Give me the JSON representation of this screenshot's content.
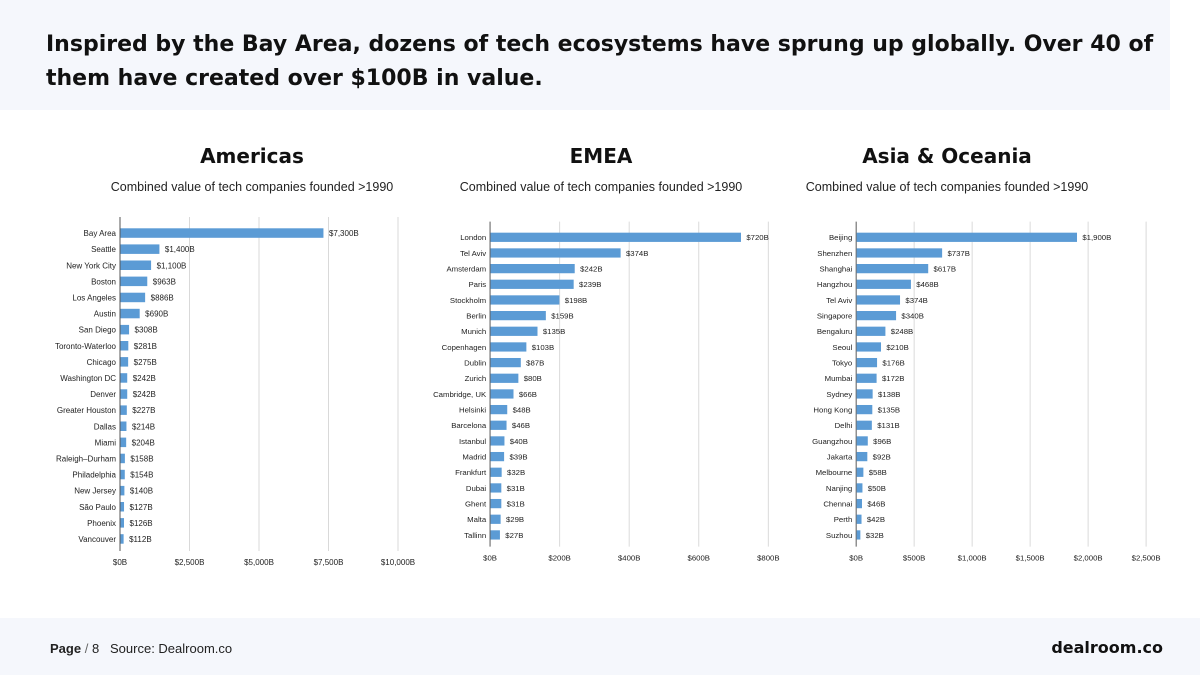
{
  "headline": "Inspired by the Bay Area, dozens of tech ecosystems have sprung up globally. Over 40 of them have created over $100B in value.",
  "footer": {
    "page_label": "Page",
    "page_sep": "/",
    "page_number": "8",
    "source": "Source: Dealroom.co",
    "brand": "dealroom.co"
  },
  "colors": {
    "bar": "#5b9bd5",
    "grid": "#d9d9d9",
    "axis": "#555555"
  },
  "chart_data": [
    {
      "type": "bar",
      "orientation": "horizontal",
      "title": "Americas",
      "subtitle": "Combined value of tech companies founded >1990",
      "xlim": [
        0,
        10000
      ],
      "ticks": [
        0,
        2500,
        5000,
        7500,
        10000
      ],
      "tick_labels": [
        "$0B",
        "$2,500B",
        "$5,000B",
        "$7,500B",
        "$10,000B"
      ],
      "categories": [
        "Bay Area",
        "Seattle",
        "New York City",
        "Boston",
        "Los Angeles",
        "Austin",
        "San Diego",
        "Toronto-Waterloo",
        "Chicago",
        "Washington DC",
        "Denver",
        "Greater Houston",
        "Dallas",
        "Miami",
        "Raleigh–Durham",
        "Philadelphia",
        "New Jersey",
        "São Paulo",
        "Phoenix",
        "Vancouver"
      ],
      "values": [
        7300,
        1400,
        1100,
        963,
        886,
        690,
        308,
        281,
        275,
        242,
        242,
        227,
        214,
        204,
        158,
        154,
        140,
        127,
        126,
        112
      ],
      "labels": [
        "$7,300B",
        "$1,400B",
        "$1,100B",
        "$963B",
        "$886B",
        "$690B",
        "$308B",
        "$281B",
        "$275B",
        "$242B",
        "$242B",
        "$227B",
        "$214B",
        "$204B",
        "$158B",
        "$154B",
        "$140B",
        "$127B",
        "$126B",
        "$112B"
      ]
    },
    {
      "type": "bar",
      "orientation": "horizontal",
      "title": "EMEA",
      "subtitle": "Combined value of tech companies founded >1990",
      "xlim": [
        0,
        800
      ],
      "ticks": [
        0,
        200,
        400,
        600,
        800
      ],
      "tick_labels": [
        "$0B",
        "$200B",
        "$400B",
        "$600B",
        "$800B"
      ],
      "categories": [
        "London",
        "Tel Aviv",
        "Amsterdam",
        "Paris",
        "Stockholm",
        "Berlin",
        "Munich",
        "Copenhagen",
        "Dublin",
        "Zurich",
        "Cambridge, UK",
        "Helsinki",
        "Barcelona",
        "Istanbul",
        "Madrid",
        "Frankfurt",
        "Dubai",
        "Ghent",
        "Malta",
        "Tallinn"
      ],
      "values": [
        720,
        374,
        242,
        239,
        198,
        159,
        135,
        103,
        87,
        80,
        66,
        48,
        46,
        40,
        39,
        32,
        31,
        31,
        29,
        27
      ],
      "labels": [
        "$720B",
        "$374B",
        "$242B",
        "$239B",
        "$198B",
        "$159B",
        "$135B",
        "$103B",
        "$87B",
        "$80B",
        "$66B",
        "$48B",
        "$46B",
        "$40B",
        "$39B",
        "$32B",
        "$31B",
        "$31B",
        "$29B",
        "$27B"
      ]
    },
    {
      "type": "bar",
      "orientation": "horizontal",
      "title": "Asia & Oceania",
      "subtitle": "Combined value of tech companies founded >1990",
      "xlim": [
        0,
        2500
      ],
      "ticks": [
        0,
        500,
        1000,
        1500,
        2000,
        2500
      ],
      "tick_labels": [
        "$0B",
        "$500B",
        "$1,000B",
        "$1,500B",
        "$2,000B",
        "$2,500B"
      ],
      "categories": [
        "Beijing",
        "Shenzhen",
        "Shanghai",
        "Hangzhou",
        "Tel Aviv",
        "Singapore",
        "Bengaluru",
        "Seoul",
        "Tokyo",
        "Mumbai",
        "Sydney",
        "Hong Kong",
        "Delhi",
        "Guangzhou",
        "Jakarta",
        "Melbourne",
        "Nanjing",
        "Chennai",
        "Perth",
        "Suzhou"
      ],
      "values": [
        1900,
        737,
        617,
        468,
        374,
        340,
        248,
        210,
        176,
        172,
        138,
        135,
        131,
        96,
        92,
        58,
        50,
        46,
        42,
        32
      ],
      "labels": [
        "$1,900B",
        "$737B",
        "$617B",
        "$468B",
        "$374B",
        "$340B",
        "$248B",
        "$210B",
        "$176B",
        "$172B",
        "$138B",
        "$135B",
        "$131B",
        "$96B",
        "$92B",
        "$58B",
        "$50B",
        "$46B",
        "$42B",
        "$32B"
      ]
    }
  ]
}
